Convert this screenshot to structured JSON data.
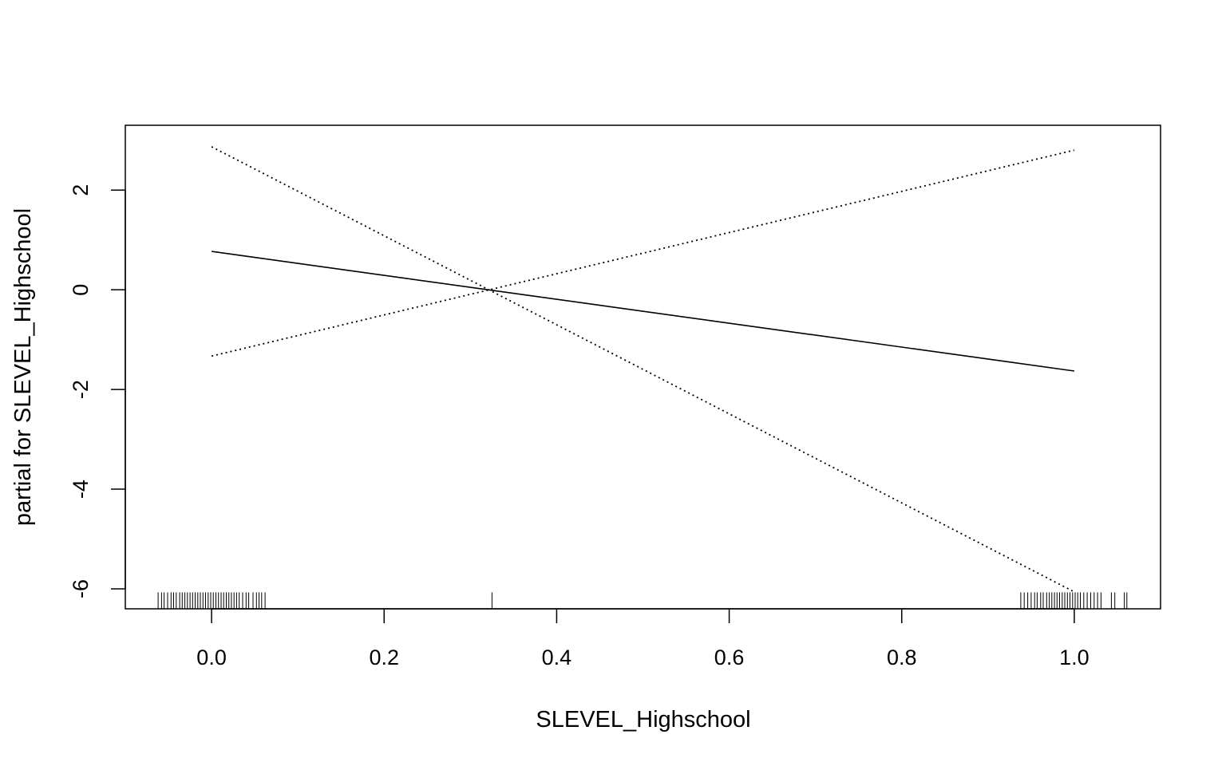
{
  "chart_data": {
    "type": "line",
    "title": "",
    "xlabel": "SLEVEL_Highschool",
    "ylabel": "partial for SLEVEL_Highschool",
    "xlim": [
      -0.1,
      1.1
    ],
    "ylim": [
      -6.4,
      3.3
    ],
    "x_ticks": [
      0.0,
      0.2,
      0.4,
      0.6,
      0.8,
      1.0
    ],
    "x_tick_labels": [
      "0.0",
      "0.2",
      "0.4",
      "0.6",
      "0.8",
      "1.0"
    ],
    "y_ticks": [
      2,
      0,
      -2,
      -4,
      -6
    ],
    "y_tick_labels": [
      "2",
      "0",
      "-2",
      "-4",
      "-6"
    ],
    "grid": false,
    "legend": "none",
    "series": [
      {
        "style": "solid",
        "x": [
          0.0,
          1.0
        ],
        "y": [
          0.77,
          -1.63
        ]
      },
      {
        "style": "dotted",
        "x": [
          0.0,
          1.0
        ],
        "y": [
          2.87,
          -6.06
        ]
      },
      {
        "style": "dotted",
        "x": [
          0.0,
          1.0
        ],
        "y": [
          -1.33,
          2.8
        ]
      }
    ],
    "rug": {
      "y_value": -6.07,
      "x": [
        -0.062,
        -0.058,
        -0.055,
        -0.051,
        -0.047,
        -0.044,
        -0.041,
        -0.037,
        -0.034,
        -0.031,
        -0.028,
        -0.025,
        -0.022,
        -0.019,
        -0.016,
        -0.013,
        -0.01,
        -0.007,
        -0.004,
        -0.001,
        0.002,
        0.005,
        0.008,
        0.011,
        0.014,
        0.017,
        0.02,
        0.023,
        0.026,
        0.029,
        0.032,
        0.036,
        0.04,
        0.043,
        0.048,
        0.052,
        0.055,
        0.058,
        0.062,
        0.325,
        0.938,
        0.942,
        0.946,
        0.95,
        0.954,
        0.957,
        0.961,
        0.964,
        0.968,
        0.971,
        0.974,
        0.977,
        0.98,
        0.983,
        0.986,
        0.989,
        0.992,
        0.995,
        0.998,
        1.001,
        1.004,
        1.007,
        1.011,
        1.015,
        1.019,
        1.023,
        1.027,
        1.031,
        1.043,
        1.047,
        1.058,
        1.061
      ]
    }
  }
}
